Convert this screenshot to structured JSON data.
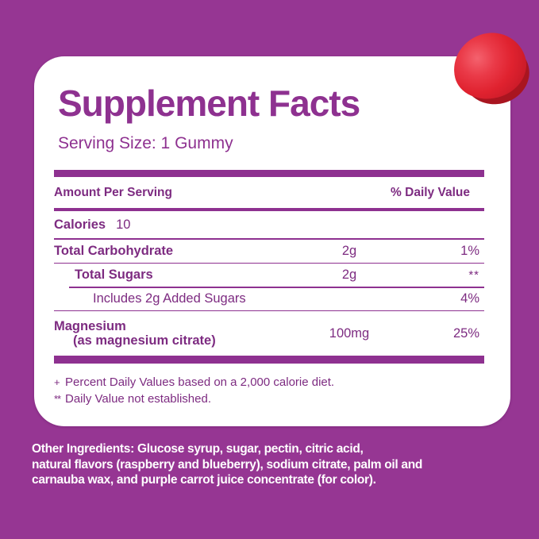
{
  "colors": {
    "background": "#963693",
    "card": "#ffffff",
    "accent_purple": "#8e3190",
    "text_purple": "#7d2b81",
    "ingredients_text": "#ffffff",
    "gummy_red": "#e0222f"
  },
  "header": {
    "title": "Supplement Facts",
    "serving_size": "Serving Size: 1 Gummy"
  },
  "table": {
    "columns": {
      "left": "Amount Per Serving",
      "right": "% Daily Value"
    },
    "rows": [
      {
        "name": "Calories",
        "inline_value": "10",
        "amount": "",
        "daily_value": ""
      },
      {
        "name": "Total Carbohydrate",
        "amount": "2g",
        "daily_value": "1%"
      },
      {
        "name": "Total Sugars",
        "amount": "2g",
        "daily_value": "**"
      },
      {
        "name": "Includes 2g Added Sugars",
        "amount": "",
        "daily_value": "4%"
      },
      {
        "name": "Magnesium",
        "name_sub": "(as magnesium citrate)",
        "amount": "100mg",
        "daily_value": "25%"
      }
    ]
  },
  "footnotes": [
    {
      "marker": "+",
      "text": "Percent Daily Values based on a 2,000 calorie diet."
    },
    {
      "marker": "**",
      "text": "Daily Value not established."
    }
  ],
  "other_ingredients": {
    "label": "Other Ingredients:",
    "lines": [
      " Glucose syrup, sugar, pectin, citric acid,",
      "natural flavors (raspberry and blueberry), sodium citrate, palm oil and",
      "carnauba wax, and purple carrot juice concentrate (for color)."
    ]
  }
}
